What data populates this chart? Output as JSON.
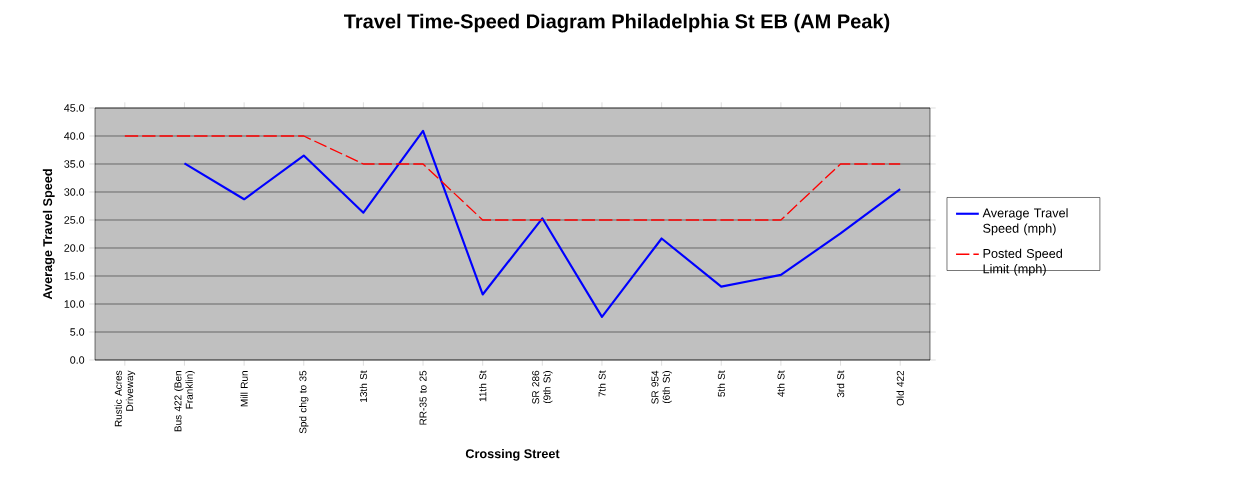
{
  "chart_data": {
    "type": "line",
    "title": "Travel Time-Speed Diagram Philadelphia St EB (AM Peak)",
    "xlabel": "Crossing Street",
    "ylabel": "Average Travel Speed",
    "categories": [
      "Rustic Acres Driveway",
      "Bus 422 (Ben Franklin)",
      "Mill Run",
      "Spd chg to 35",
      "13th St",
      "RR-35 to 25",
      "11th St",
      "SR 286 (9th St)",
      "7th St",
      "SR 954 (6th St)",
      "5th St",
      "4th St",
      "3rd St",
      "Old 422"
    ],
    "series": [
      {
        "name": "Average Travel Speed (mph)",
        "color": "#0000ff",
        "line_style": "solid",
        "values": [
          null,
          35.1,
          28.7,
          36.5,
          26.3,
          40.9,
          11.7,
          25.3,
          7.7,
          21.7,
          13.1,
          15.2,
          22.6,
          30.5
        ]
      },
      {
        "name": "Posted Speed Limit (mph)",
        "color": "#ff0000",
        "line_style": "dashed",
        "values": [
          40,
          40,
          40,
          40,
          35,
          35,
          25,
          25,
          25,
          25,
          25,
          25,
          35,
          35
        ]
      }
    ],
    "ylim": [
      0,
      45
    ],
    "yticks": [
      {
        "value": 0,
        "label": "0.0"
      },
      {
        "value": 5,
        "label": "5.0"
      },
      {
        "value": 10,
        "label": "10.0"
      },
      {
        "value": 15,
        "label": "15.0"
      },
      {
        "value": 20,
        "label": "20.0"
      },
      {
        "value": 25,
        "label": "25.0"
      },
      {
        "value": 30,
        "label": "30.0"
      },
      {
        "value": 35,
        "label": "35.0"
      },
      {
        "value": 40,
        "label": "40.0"
      },
      {
        "value": 45,
        "label": "45.0"
      }
    ],
    "grid": "y",
    "legend": "right",
    "marker": "none"
  }
}
